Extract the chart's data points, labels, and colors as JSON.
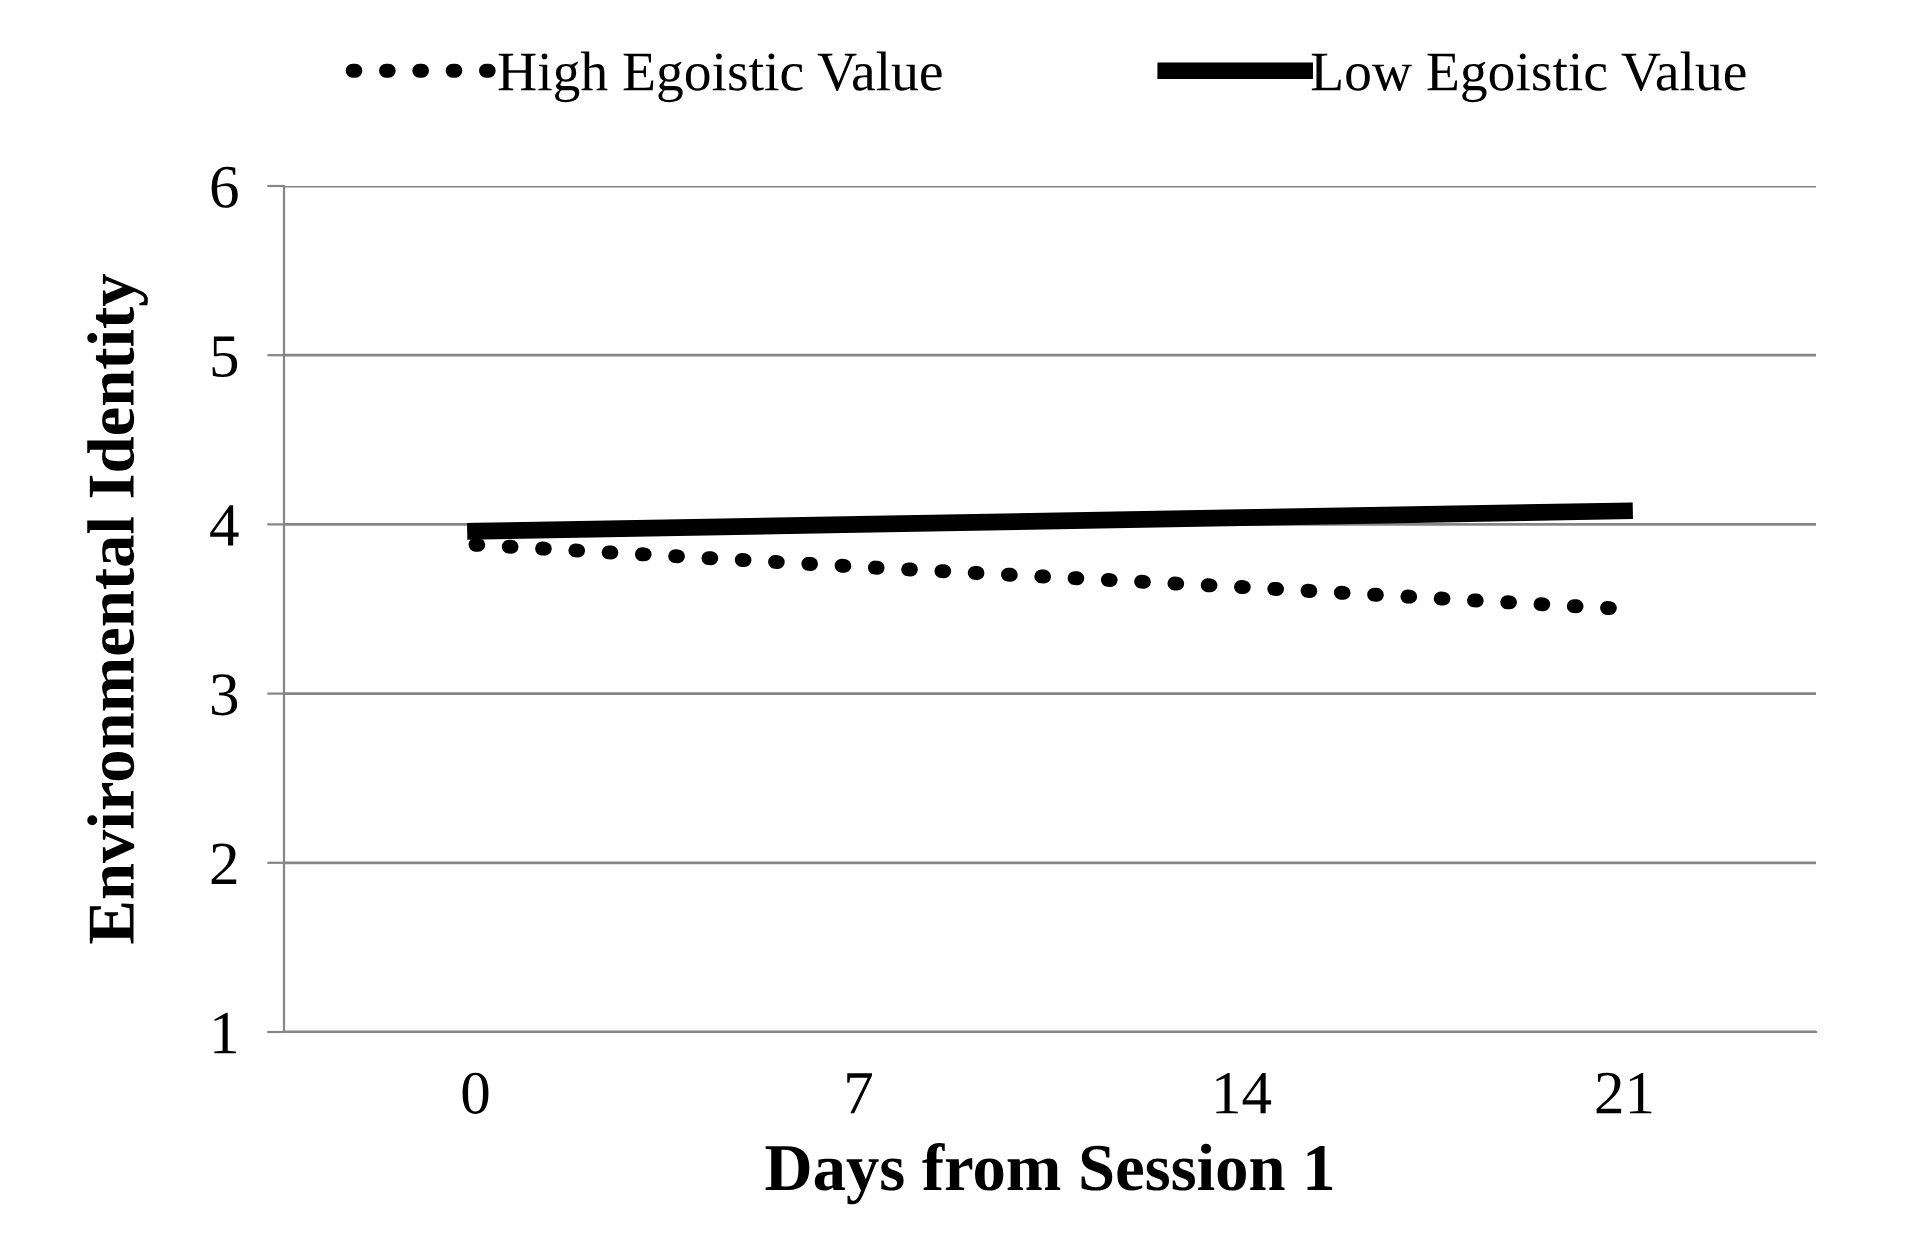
{
  "chart_data": {
    "type": "line",
    "xlabel": "Days from Session 1",
    "ylabel": "Environmental Identity",
    "categories": [
      "0",
      "7",
      "14",
      "21"
    ],
    "series": [
      {
        "name": "High Egoistic Value",
        "color": "#000000",
        "line_style": "dotted",
        "values": [
          3.88,
          3.75,
          3.63,
          3.5
        ]
      },
      {
        "name": "Low Egoistic Value",
        "color": "#000000",
        "line_style": "solid",
        "values": [
          3.96,
          4.0,
          4.04,
          4.08
        ]
      }
    ],
    "ylim": [
      1,
      6
    ],
    "yticks": [
      1,
      2,
      3,
      4,
      5,
      6
    ],
    "grid": "y",
    "legend": "top",
    "marker": "none"
  }
}
